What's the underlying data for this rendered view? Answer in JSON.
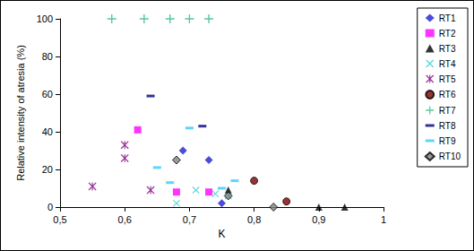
{
  "chart_data": {
    "type": "scatter",
    "x_label": "K",
    "y_label": "Relative intensity of atresia (%)",
    "xlim": [
      0.5,
      1
    ],
    "xticks": [
      {
        "value": 0.5,
        "label": "0,5"
      },
      {
        "value": 0.6,
        "label": "0,6"
      },
      {
        "value": 0.7,
        "label": "0,7"
      },
      {
        "value": 0.8,
        "label": "0,8"
      },
      {
        "value": 0.9,
        "label": "0,9"
      },
      1
    ],
    "ylim": [
      0,
      100
    ],
    "yticks": [
      0,
      20,
      40,
      60,
      80,
      100
    ],
    "grid": false,
    "legend": "right",
    "series": [
      {
        "name": "RT1",
        "color": "#1f1fcc",
        "marker": "diamond",
        "x": [
          0.69,
          0.73,
          0.75
        ],
        "values": [
          30,
          25,
          2
        ]
      },
      {
        "name": "RT2",
        "color": "#ff00ff",
        "marker": "square",
        "x": [
          0.62,
          0.68,
          0.73
        ],
        "values": [
          41,
          8,
          8
        ]
      },
      {
        "name": "RT3",
        "color": "#000000",
        "marker": "triangle",
        "x": [
          0.76,
          0.9,
          0.94
        ],
        "values": [
          9,
          0,
          0
        ]
      },
      {
        "name": "RT4",
        "color": "#33cccc",
        "marker": "x",
        "x": [
          0.68,
          0.71,
          0.74,
          0.76
        ],
        "values": [
          2,
          9,
          7,
          6
        ]
      },
      {
        "name": "RT5",
        "color": "#800080",
        "marker": "asterisk",
        "x": [
          0.55,
          0.6,
          0.6,
          0.64
        ],
        "values": [
          11,
          33,
          26,
          9
        ]
      },
      {
        "name": "RT6",
        "color": "#800000",
        "marker": "circle",
        "x": [
          0.8,
          0.85
        ],
        "values": [
          14,
          3
        ]
      },
      {
        "name": "RT7",
        "color": "#2eb88a",
        "marker": "plus",
        "x": [
          0.58,
          0.63,
          0.67,
          0.7,
          0.73
        ],
        "values": [
          100,
          100,
          100,
          100,
          100
        ]
      },
      {
        "name": "RT8",
        "color": "#000080",
        "marker": "dash",
        "x": [
          0.64,
          0.72
        ],
        "values": [
          59,
          43
        ]
      },
      {
        "name": "RT9",
        "color": "#33ccff",
        "marker": "dash",
        "x": [
          0.65,
          0.67,
          0.7,
          0.75,
          0.77
        ],
        "values": [
          21,
          13,
          42,
          10,
          14
        ]
      },
      {
        "name": "RT10",
        "color": "#808080",
        "marker": "diamond_outlined",
        "x": [
          0.68,
          0.76,
          0.83
        ],
        "values": [
          25,
          6,
          0
        ]
      }
    ]
  }
}
